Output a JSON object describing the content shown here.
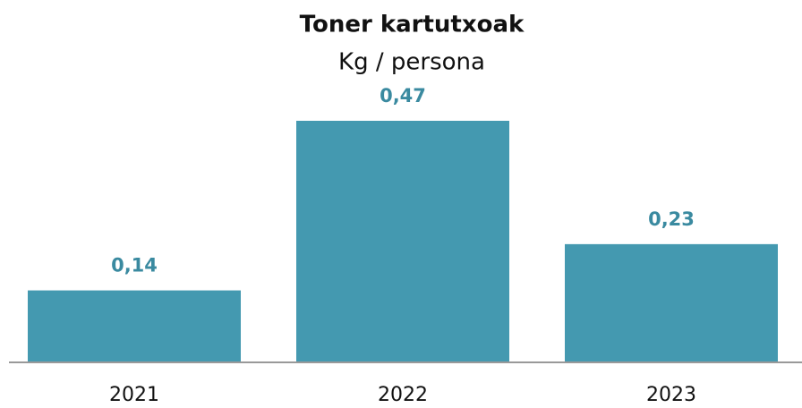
{
  "chart_data": {
    "type": "bar",
    "title": "Toner kartutxoak",
    "subtitle": "Kg / persona",
    "categories": [
      "2021",
      "2022",
      "2023"
    ],
    "values": [
      0.14,
      0.47,
      0.23
    ],
    "value_labels": [
      "0,14",
      "0,47",
      "0,23"
    ],
    "color": "#4499b0"
  }
}
